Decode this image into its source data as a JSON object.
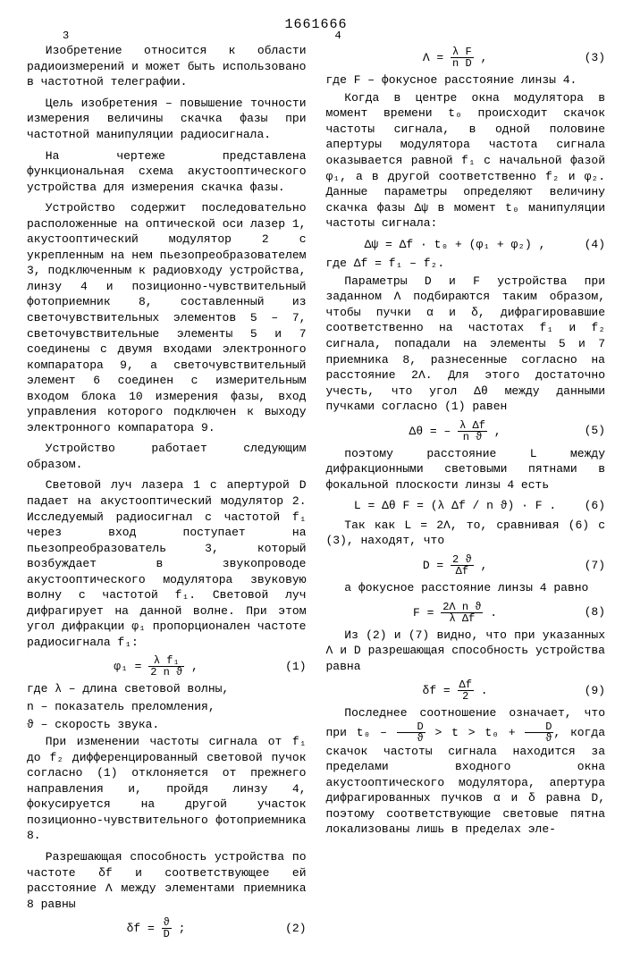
{
  "patent_number": "1661666",
  "col_head_left": "3",
  "col_head_right": "4",
  "line_numbers_left": [
    "5",
    "10",
    "15",
    "20",
    "25",
    "30",
    "35",
    "40",
    "45",
    "50",
    "55"
  ],
  "left": {
    "p1": "Изобретение относится к области радиоизмерений и может быть использовано в частотной телеграфии.",
    "p2": "Цель изобретения – повышение точности измерения величины скачка фазы при частотной манипуляции радиосигнала.",
    "p3": "На чертеже представлена функциональная схема акустооптического устройства для измерения скачка фазы.",
    "p4": "Устройство содержит последовательно расположенные на оптической оси лазер 1, акустооптический модулятор 2 с укрепленным на нем пьезопреобразователем 3, подключенным к радиовходу устройства, линзу 4 и позиционно-чувствительный фотоприемник 8, составленный из светочувствительных элементов 5 – 7, светочувствительные элементы 5 и 7 соединены с двумя входами электронного компаратора 9, а светочувствительный элемент 6 соединен с измерительным входом блока 10 измерения фазы, вход управления которого подключен к выходу электронного компаратора 9.",
    "p5": "Устройство работает следующим образом.",
    "p6": "Световой луч лазера 1 с апертурой D падает на акустооптический модулятор 2. Исследуемый радиосигнал с частотой f₁ через вход поступает на пьезопреобразователь 3, который возбуждает в звукопроводе акустооптического модулятора звуковую волну с частотой f₁. Световой луч дифрагирует на данной волне. При этом угол дифракции φ₁ пропорционален частоте радиосигнала f₁:",
    "eq1": "φ₁ = λ f₁ / (2 n ϑ) ,",
    "eq1n": "(1)",
    "where1": "где λ – длина световой волны,",
    "where2": "n – показатель преломления,",
    "where3": "ϑ – скорость звука.",
    "p7": "При изменении частоты сигнала от f₁ до f₂ дифференцированный световой пучок согласно (1) отклоняется от прежнего направления и, пройдя линзу 4, фокусируется на другой участок позиционно-чувствительного фотоприемника 8.",
    "p8": "Разрешающая способность устройства по частоте δf и соответствующее ей расстояние Λ между элементами приемника 8 равны",
    "eq2_l": "δf = ",
    "eq2n": "(2)"
  },
  "right": {
    "eq3_l": "Λ = ",
    "eq3n": "(3)",
    "wheref": "где F – фокусное расстояние линзы 4.",
    "p1": "Когда в центре окна модулятора в момент времени t₀ происходит скачок частоты сигнала, в одной половине апертуры модулятора частота сигнала оказывается равной f₁ с начальной фазой φ₁, а в другой соответственно f₂ и φ₂. Данные параметры определяют величину скачка фазы Δψ в момент t₀ манипуляции частоты сигнала:",
    "eq4": "Δψ = Δf · t₀ + (φ₁ + φ₂) ,",
    "eq4n": "(4)",
    "wheredf": "где Δf = f₁ – f₂.",
    "p2": "Параметры D и F устройства при заданном Λ подбираются таким образом, чтобы пучки α и δ, дифрагировавшие соответственно на частотах f₁ и f₂ сигнала, попадали на элементы 5 и 7 приемника 8, разнесенные согласно на расстояние 2Λ. Для этого достаточно учесть, что угол Δθ между данными пучками согласно (1) равен",
    "eq5": "Δθ = – λ Δf / (n ϑ) ,",
    "eq5n": "(5)",
    "p3": "поэтому расстояние L между дифракционными световыми пятнами в фокальной плоскости линзы 4 есть",
    "eq6": "L = Δθ F = (λ Δf / n ϑ) · F .",
    "eq6n": "(6)",
    "p4": "Так как L = 2Λ, то, сравнивая (6) с (3), находят, что",
    "eq7": "D = 2 ϑ / Δf ,",
    "eq7n": "(7)",
    "p5": "а фокусное расстояние линзы 4 равно",
    "eq8": "F = 2Λ n ϑ / (λ Δf) .",
    "eq8n": "(8)",
    "p6": "Из (2) и (7) видно, что при указанных Λ и D разрешающая способность устройства равна",
    "eq9": "δf = Δf / 2 .",
    "eq9n": "(9)",
    "p7_a": "Последнее соотношение означает, что при t₀ – ",
    "p7_b": " > t > t₀ + ",
    "p7_c": ", когда скачок частоты сигнала находится за пределами входного окна акустооптического модулятора, апертура дифрагированных пучков α и δ равна D, поэтому соответствующие световые пятна локализованы лишь в пределах эле-"
  }
}
